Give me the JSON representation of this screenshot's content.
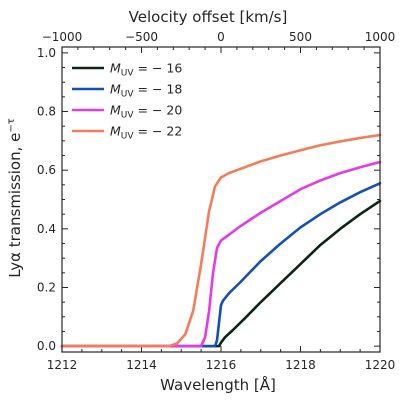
{
  "chart_data": {
    "type": "line",
    "xlabel": "Wavelength [Å]",
    "ylabel_main": "Lyα transmission, e",
    "ylabel_sup": "−τ",
    "top_axis_label": "Velocity offset [km/s]",
    "xlim": [
      1212,
      1220
    ],
    "ylim": [
      -0.02,
      1.02
    ],
    "x_ticks": [
      "1212",
      "1214",
      "1216",
      "1218",
      "1220"
    ],
    "x_tick_values": [
      1212,
      1214,
      1216,
      1218,
      1220
    ],
    "y_ticks": [
      "0.0",
      "0.2",
      "0.4",
      "0.6",
      "0.8",
      "1.0"
    ],
    "y_tick_values": [
      0,
      0.2,
      0.4,
      0.6,
      0.8,
      1.0
    ],
    "top_ticks": [
      "−1000",
      "−500",
      "0",
      "500",
      "1000"
    ],
    "top_tick_values": [
      -1000,
      -500,
      0,
      500,
      1000
    ],
    "top_lim": [
      -1000,
      1000
    ],
    "legend_position": "top-left",
    "series": [
      {
        "legend": {
          "base": "M",
          "sub": "UV",
          "value": " = − 16"
        },
        "color": "#0d2415",
        "x": [
          1212,
          1215.95,
          1216.0,
          1216.1,
          1216.3,
          1216.6,
          1217.0,
          1217.5,
          1218.0,
          1218.5,
          1219.0,
          1219.5,
          1220.0
        ],
        "y": [
          0.0,
          0.0,
          0.012,
          0.03,
          0.055,
          0.095,
          0.15,
          0.215,
          0.28,
          0.345,
          0.4,
          0.45,
          0.495
        ]
      },
      {
        "legend": {
          "base": "M",
          "sub": "UV",
          "value": " = − 18"
        },
        "color": "#1450b8",
        "x": [
          1212,
          1215.85,
          1215.9,
          1215.95,
          1216.0,
          1216.05,
          1216.2,
          1216.5,
          1217.0,
          1217.5,
          1218.0,
          1218.5,
          1219.0,
          1219.5,
          1220.0
        ],
        "y": [
          0.0,
          0.0,
          0.02,
          0.08,
          0.14,
          0.155,
          0.18,
          0.22,
          0.29,
          0.35,
          0.405,
          0.45,
          0.49,
          0.525,
          0.555
        ]
      },
      {
        "legend": {
          "base": "M",
          "sub": "UV",
          "value": " = − 20"
        },
        "color": "#e43be8",
        "x": [
          1212,
          1215.5,
          1215.6,
          1215.7,
          1215.8,
          1215.9,
          1216.0,
          1216.2,
          1216.5,
          1217.0,
          1217.5,
          1218.0,
          1218.5,
          1219.0,
          1219.5,
          1220.0
        ],
        "y": [
          0.0,
          0.0,
          0.03,
          0.12,
          0.25,
          0.335,
          0.36,
          0.38,
          0.41,
          0.455,
          0.495,
          0.535,
          0.565,
          0.59,
          0.61,
          0.628
        ]
      },
      {
        "legend": {
          "base": "M",
          "sub": "UV",
          "value": " = − 22"
        },
        "color": "#f57c58",
        "x": [
          1212,
          1214.7,
          1214.9,
          1215.1,
          1215.3,
          1215.5,
          1215.7,
          1215.85,
          1216.0,
          1216.2,
          1216.5,
          1217.0,
          1217.5,
          1218.0,
          1218.5,
          1219.0,
          1219.5,
          1220.0
        ],
        "y": [
          0.0,
          0.0,
          0.01,
          0.04,
          0.12,
          0.28,
          0.46,
          0.545,
          0.575,
          0.59,
          0.605,
          0.63,
          0.65,
          0.668,
          0.685,
          0.698,
          0.71,
          0.72
        ]
      }
    ]
  }
}
